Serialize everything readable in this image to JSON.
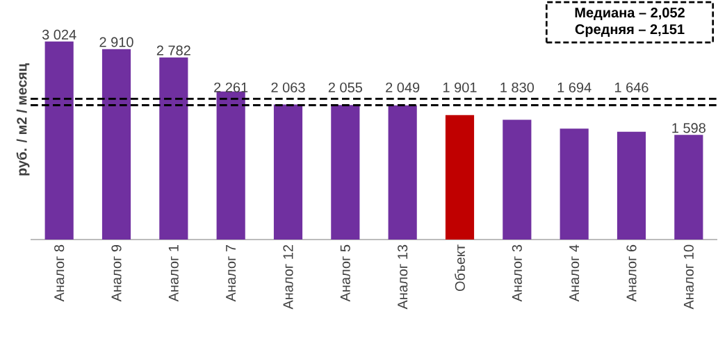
{
  "chart_data": {
    "type": "bar",
    "ylabel": "руб. / м2 / месяц",
    "categories": [
      "Аналог 8",
      "Аналог 9",
      "Аналог 1",
      "Аналог 7",
      "Аналог 12",
      "Аналог 5",
      "Аналог 13",
      "Объект",
      "Аналог 3",
      "Аналог 4",
      "Аналог 6",
      "Аналог 10"
    ],
    "values": [
      3024,
      2910,
      2782,
      2261,
      2063,
      2055,
      2049,
      1901,
      1830,
      1694,
      1646,
      1598
    ],
    "value_labels": [
      "3 024",
      "2 910",
      "2 782",
      "2 261",
      "2 063",
      "2 055",
      "2 049",
      "1 901",
      "1 830",
      "1 694",
      "1 646",
      "1 598"
    ],
    "colors": [
      "#7030a0",
      "#7030a0",
      "#7030a0",
      "#7030a0",
      "#7030a0",
      "#7030a0",
      "#7030a0",
      "#c00000",
      "#7030a0",
      "#7030a0",
      "#7030a0",
      "#7030a0"
    ],
    "ref_lines": [
      {
        "axis": "y",
        "value": 2052,
        "color": "#000000",
        "line_style": "dashed"
      },
      {
        "axis": "y",
        "value": 2151,
        "color": "#000000",
        "line_style": "dashed"
      }
    ],
    "annotations": [
      "Медиана – 2,052",
      "Средняя – 2,151"
    ]
  }
}
